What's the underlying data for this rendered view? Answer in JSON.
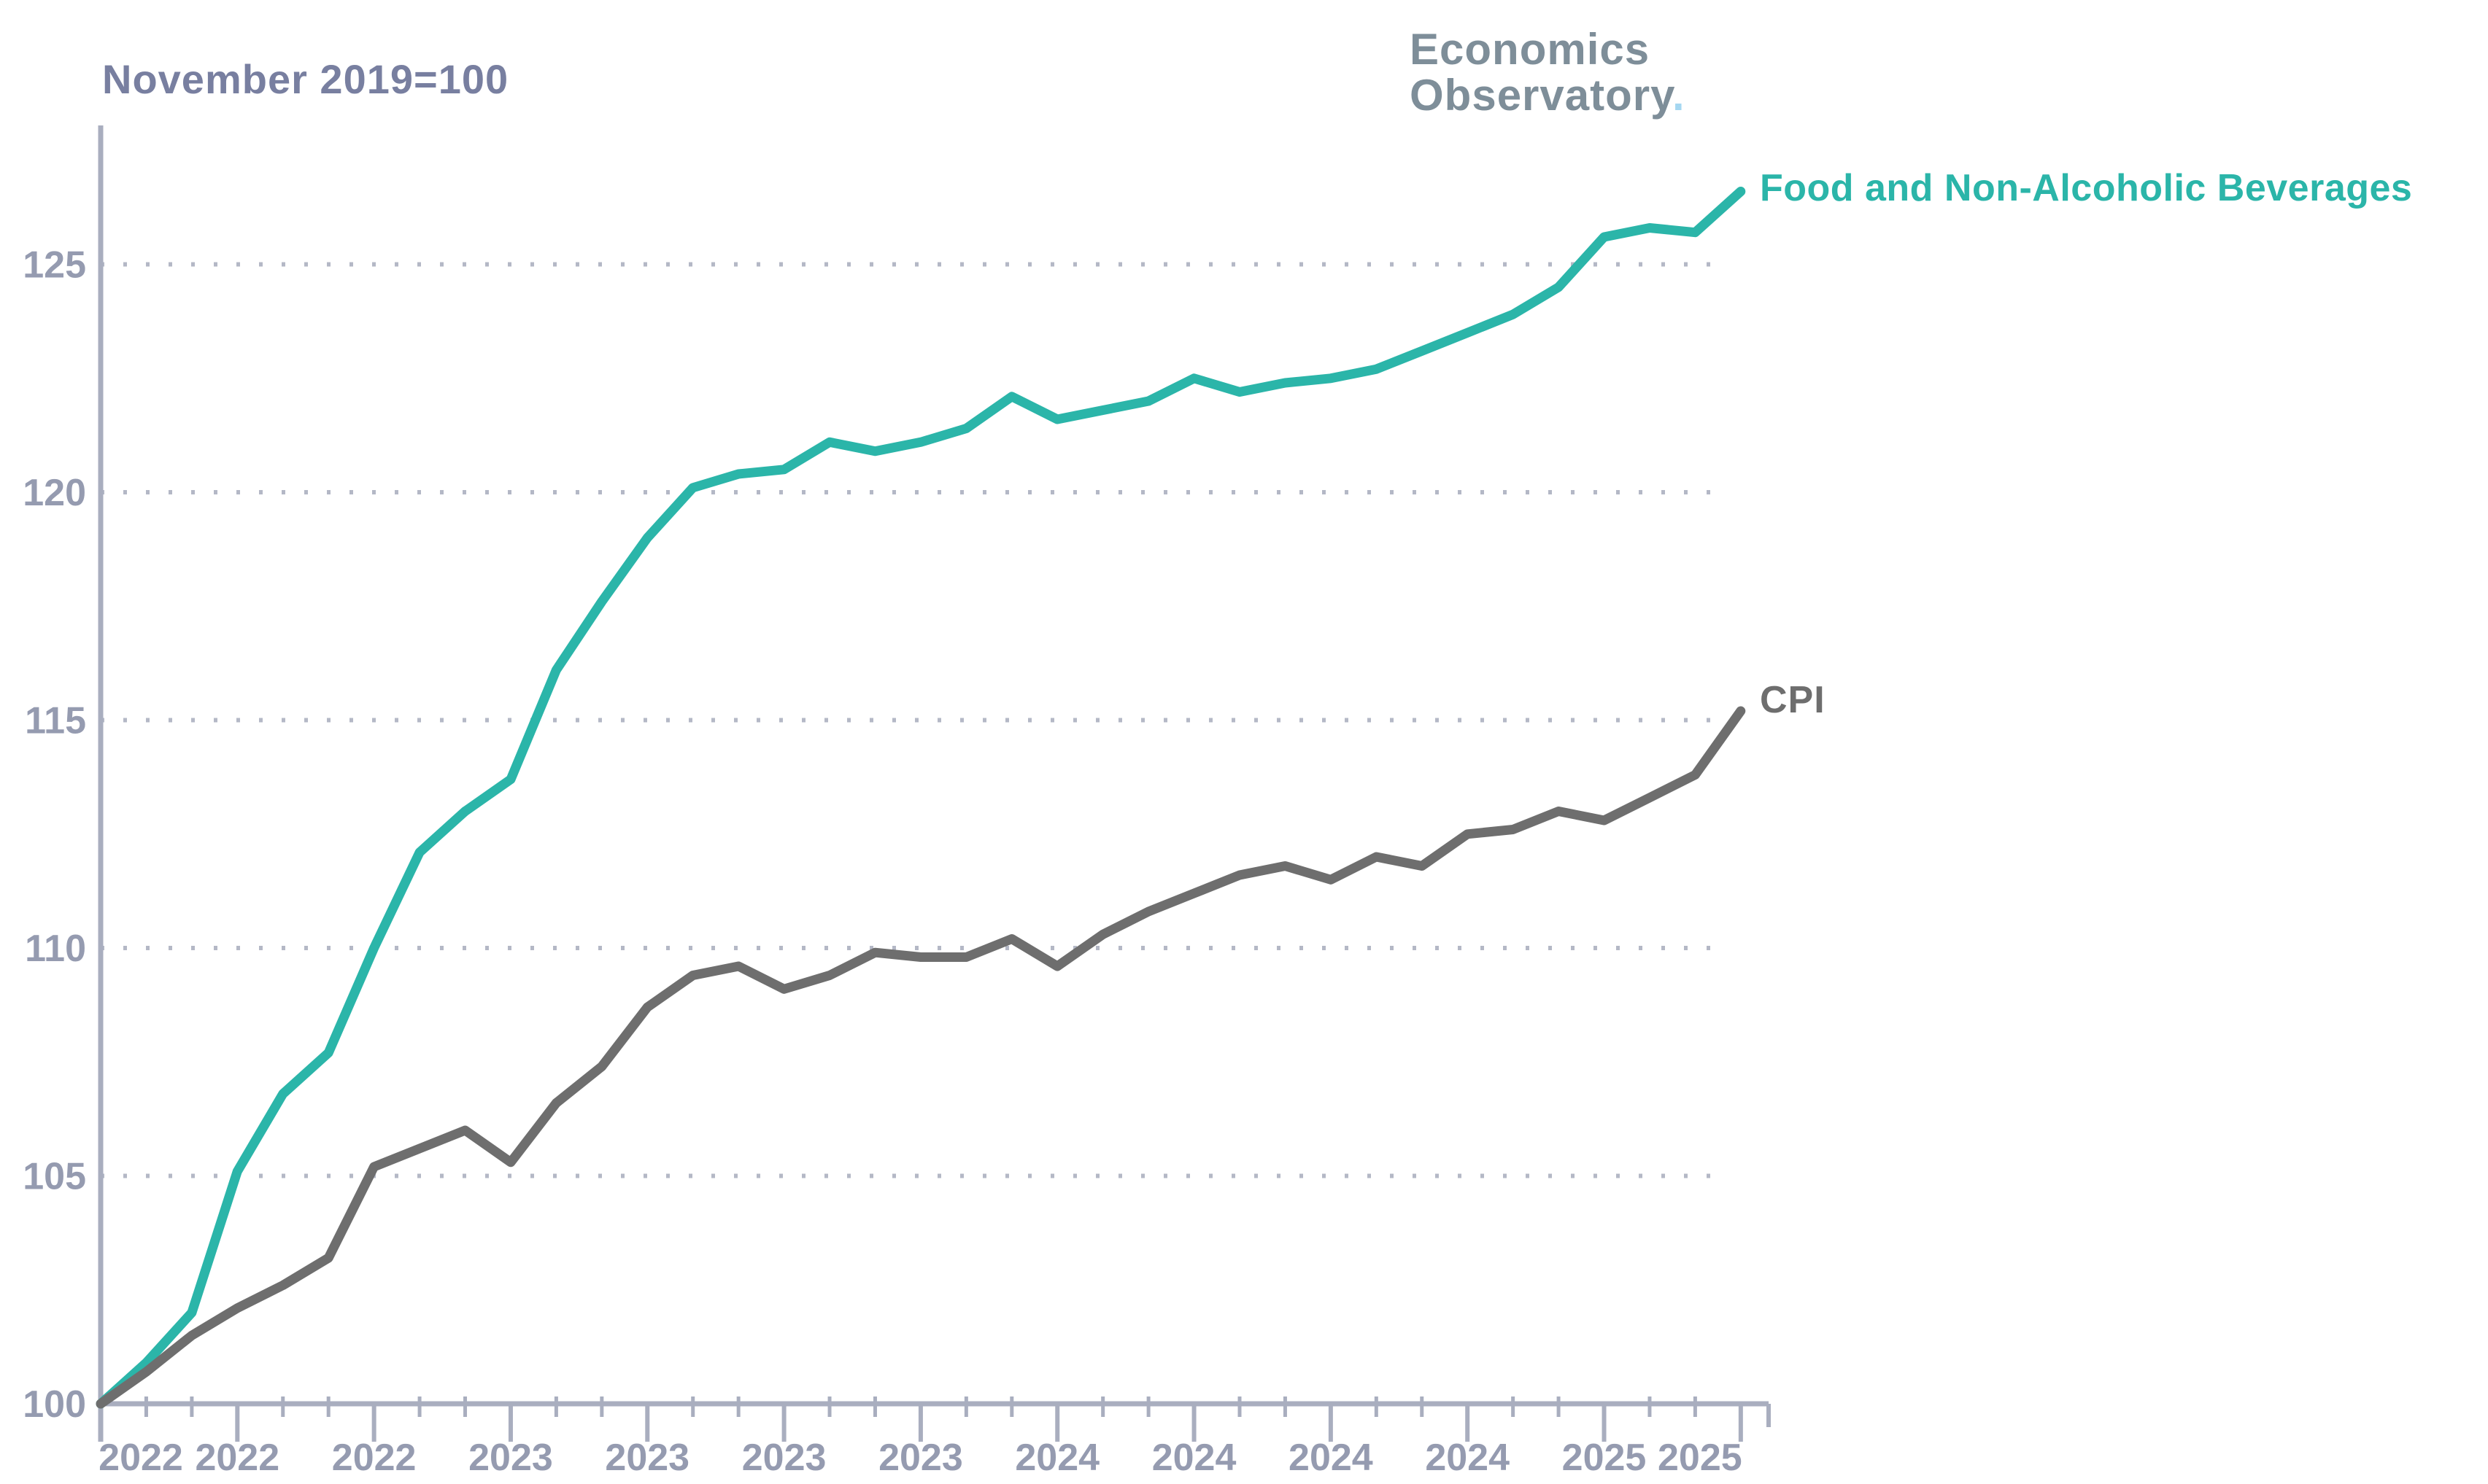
{
  "header": {
    "title": "November 2019=100",
    "logo_line1": "Economics",
    "logo_line2": "Observatory",
    "logo_dot": "."
  },
  "chart_data": {
    "type": "line",
    "title": "November 2019=100",
    "xlabel": "",
    "ylabel": "",
    "grid": "horizontal-dotted",
    "legend_position": "end-of-line-labels",
    "x_axis": {
      "unit": "months",
      "minor_tick_every_months": 1,
      "major_tick_every_months": 3,
      "tick_labels": [
        "2022",
        "2022",
        "2022",
        "2023",
        "2023",
        "2023",
        "2023",
        "2024",
        "2024",
        "2024",
        "2024",
        "2025",
        "2025"
      ]
    },
    "y_axis": {
      "ticks": [
        100,
        105,
        110,
        115,
        120,
        125
      ],
      "range": [
        100,
        127.6
      ]
    },
    "series": [
      {
        "name": "Food and Non-Alcoholic Beverages",
        "color": "#2bb5a9",
        "values": [
          100,
          100.9,
          102,
          105.1,
          106.8,
          107.7,
          110,
          112.1,
          113,
          113.7,
          116.1,
          117.6,
          119,
          120.1,
          120.4,
          120.5,
          121.1,
          120.9,
          121.1,
          121.4,
          122.1,
          121.6,
          121.8,
          122,
          122.5,
          122.2,
          122.4,
          122.5,
          122.7,
          123.1,
          123.5,
          123.9,
          124.5,
          125.6,
          125.8,
          125.7,
          126.6
        ]
      },
      {
        "name": "CPI",
        "color": "#6e6e6e",
        "values": [
          100,
          100.7,
          101.5,
          102.1,
          102.6,
          103.2,
          105.2,
          105.6,
          106,
          105.3,
          106.6,
          107.4,
          108.7,
          109.4,
          109.6,
          109.1,
          109.4,
          109.9,
          109.8,
          109.8,
          110.2,
          109.6,
          110.3,
          110.8,
          111.2,
          111.6,
          111.8,
          111.5,
          112,
          111.8,
          112.5,
          112.6,
          113,
          112.8,
          113.3,
          113.8,
          115.2
        ]
      }
    ]
  },
  "colors": {
    "background": "#ffffff",
    "axis": "#a9aebf",
    "grid_dots": "#b4b8c6",
    "tick_labels": "#959bb0",
    "title": "#787fa0",
    "logo": "#7e8e99",
    "logo_dot": "#a5d7f1",
    "series_food": "#2bb5a9",
    "series_cpi": "#6e6e6e"
  }
}
